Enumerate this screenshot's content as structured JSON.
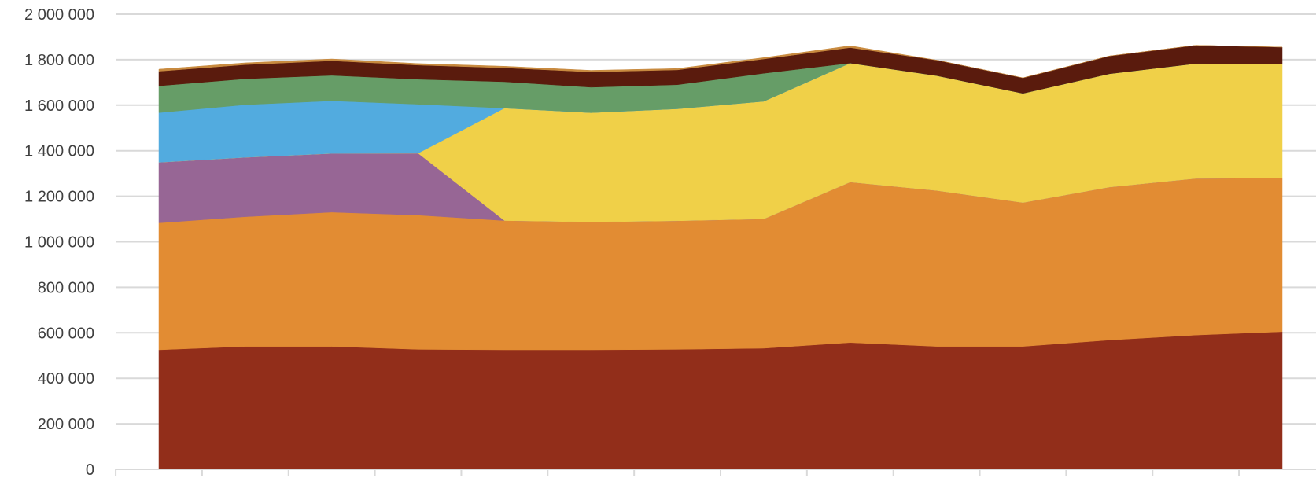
{
  "chart_data": {
    "type": "area",
    "stacked": true,
    "title": "",
    "xlabel": "",
    "ylabel": "",
    "x": [
      1,
      2,
      3,
      4,
      5,
      6,
      7,
      8,
      9,
      10,
      11,
      12,
      13,
      14
    ],
    "ylim": [
      0,
      2000000
    ],
    "yticks": [
      0,
      200000,
      400000,
      600000,
      800000,
      1000000,
      1200000,
      1400000,
      1600000,
      1800000,
      2000000
    ],
    "ytick_labels": [
      "0",
      "200 000",
      "400 000",
      "600 000",
      "800 000",
      "1 000 000",
      "1 200 000",
      "1 400 000",
      "1 600 000",
      "1 800 000",
      "2 000 000"
    ],
    "grid": true,
    "legend": "none",
    "series": [
      {
        "color": "#922E1A",
        "values": [
          525000,
          540000,
          540000,
          527000,
          525000,
          525000,
          527000,
          532000,
          557000,
          540000,
          540000,
          568000,
          590000,
          605000
        ]
      },
      {
        "color": "#E28C33",
        "values": [
          558000,
          570000,
          590000,
          590000,
          568000,
          562000,
          565000,
          568000,
          705000,
          685000,
          632000,
          672000,
          688000,
          675000
        ]
      },
      {
        "color": "#976695",
        "values": [
          266000,
          261000,
          258000,
          272000,
          0,
          0,
          0,
          0,
          0,
          0,
          0,
          0,
          0,
          0
        ]
      },
      {
        "color": "#F0D048",
        "values": [
          0,
          0,
          0,
          0,
          494000,
          480000,
          492000,
          517000,
          523000,
          505000,
          480000,
          498000,
          505000,
          500000
        ]
      },
      {
        "color": "#52ABDF",
        "values": [
          218000,
          231000,
          231000,
          215000,
          0,
          0,
          0,
          0,
          0,
          0,
          0,
          0,
          0,
          0
        ]
      },
      {
        "color": "#669D67",
        "values": [
          118000,
          114000,
          112000,
          110000,
          116000,
          112000,
          106000,
          123000,
          0,
          0,
          0,
          0,
          0,
          0
        ]
      },
      {
        "color": "#5A1B0D",
        "values": [
          64000,
          62000,
          64000,
          62000,
          61000,
          67000,
          65000,
          63000,
          68000,
          68000,
          68000,
          78000,
          80000,
          75000
        ]
      },
      {
        "color": "#C88A3F",
        "values": [
          9000,
          8000,
          8000,
          7000,
          7000,
          7000,
          6000,
          6000,
          8000,
          0,
          0,
          0,
          0,
          0
        ]
      }
    ]
  }
}
